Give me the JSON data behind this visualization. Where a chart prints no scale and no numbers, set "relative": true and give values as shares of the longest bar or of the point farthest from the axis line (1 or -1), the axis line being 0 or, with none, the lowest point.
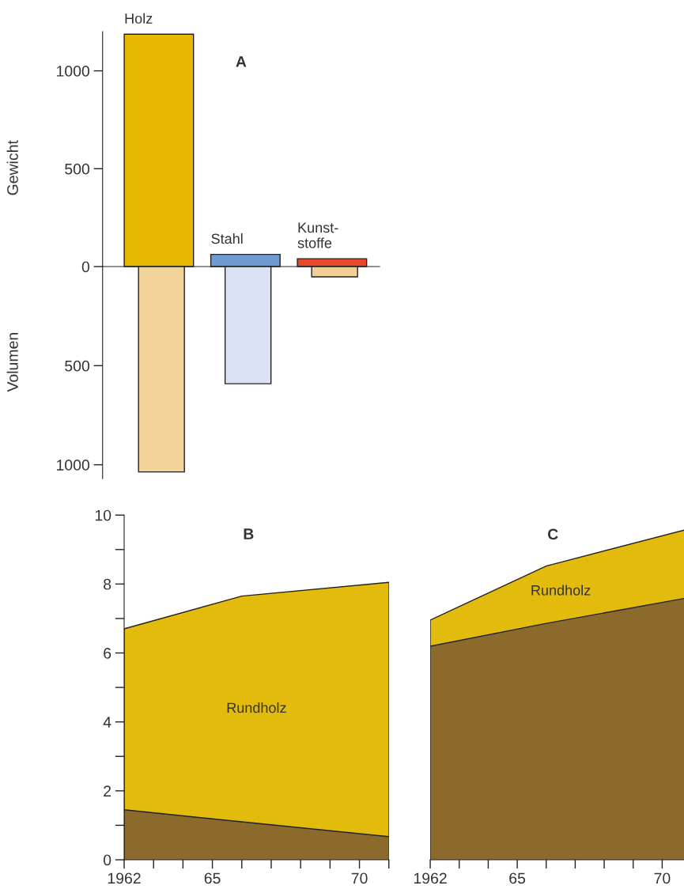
{
  "chart_data": [
    {
      "type": "bar",
      "title": "A",
      "ylabel": "Gewicht",
      "categories": [
        "Holz",
        "Stahl",
        "Kunst-\nstoffe"
      ],
      "values": [
        1187,
        62,
        40
      ],
      "colors": [
        "#e6b800",
        "#6f9bd4",
        "#e8492a"
      ],
      "ylim": [
        0,
        1200
      ],
      "yticks": [
        0,
        500,
        1000
      ]
    },
    {
      "type": "bar",
      "ylabel": "Volumen",
      "tick_labels": "y",
      "categories": [
        null,
        null,
        null
      ],
      "values": [
        1036,
        591,
        52
      ],
      "colors": [
        "#f2d49a",
        "#d8e2f4",
        "#f2cf96"
      ],
      "ylim": [
        1070,
        0
      ],
      "yticks": [
        500,
        1000
      ]
    },
    {
      "type": "area",
      "stacked": true,
      "title": "B",
      "x": [
        1962,
        1966,
        1971
      ],
      "series": [
        {
          "color": "#8c6a2c",
          "values": [
            1.45,
            1.1,
            0.67
          ]
        },
        {
          "name": "Rundholz",
          "color": "#e3bb0c",
          "values": [
            5.25,
            6.55,
            7.38
          ]
        }
      ],
      "xlim": [
        1962,
        1971
      ],
      "ylim": [
        0,
        10
      ],
      "xticks": [
        {
          "value": 1962,
          "label": "1962"
        },
        {
          "value": 1963,
          "label": null
        },
        {
          "value": 1964,
          "label": null
        },
        {
          "value": 1965,
          "label": "65"
        },
        {
          "value": 1966,
          "label": null
        },
        {
          "value": 1967,
          "label": null
        },
        {
          "value": 1968,
          "label": null
        },
        {
          "value": 1969,
          "label": null
        },
        {
          "value": 1970,
          "label": "70"
        },
        {
          "value": 1971,
          "label": null
        }
      ],
      "yticks": [
        0,
        {
          "value": 1,
          "label": null
        },
        2,
        {
          "value": 3,
          "label": null
        },
        4,
        {
          "value": 5,
          "label": null
        },
        6,
        {
          "value": 7,
          "label": null
        },
        8,
        {
          "value": 9,
          "label": null
        },
        10
      ]
    },
    {
      "type": "area",
      "stacked": true,
      "relative": true,
      "title": "C",
      "x": [
        1962,
        1966,
        1971
      ],
      "tick_labels": "x",
      "series": [
        {
          "color": "#8c6a2c",
          "values": [
            0.644,
            0.713,
            0.792
          ]
        },
        {
          "name": "Rundholz",
          "color": "#e3bb0c",
          "values": [
            0.079,
            0.173,
            0.208
          ]
        }
      ],
      "xlim": [
        1962,
        1971
      ],
      "xticks": [
        {
          "value": 1962,
          "label": "1962"
        },
        {
          "value": 1963,
          "label": null
        },
        {
          "value": 1964,
          "label": null
        },
        {
          "value": 1965,
          "label": "65"
        },
        {
          "value": 1966,
          "label": null
        },
        {
          "value": 1967,
          "label": null
        },
        {
          "value": 1968,
          "label": null
        },
        {
          "value": 1969,
          "label": null
        },
        {
          "value": 1970,
          "label": "70"
        },
        {
          "value": 1971,
          "label": null
        }
      ]
    }
  ]
}
